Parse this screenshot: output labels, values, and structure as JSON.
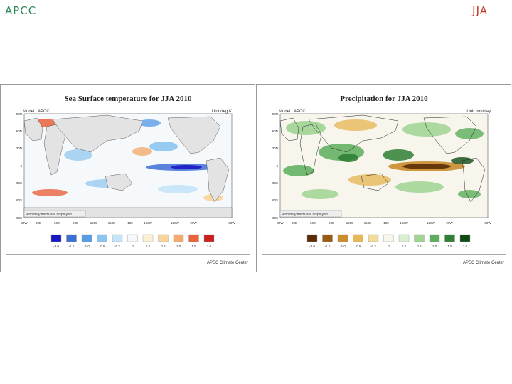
{
  "header": {
    "left": "APCC",
    "right": "JJA"
  },
  "panels": [
    {
      "title": "Sea Surface temperature for JJA 2010",
      "model": "Model : APCC",
      "unit": "Unit:deg K",
      "anomaly_note": "Anomaly fields are displayed",
      "lat_labels": [
        "90N",
        "60N",
        "30N",
        "0",
        "30S",
        "60S",
        "90S"
      ],
      "lon_labels": [
        "30W",
        "30E",
        "60E",
        "90E",
        "120E",
        "150E",
        "180",
        "150W",
        "120W",
        "90W",
        "30W"
      ],
      "legend_labels": [
        "-3.0",
        "-1.5",
        "-1.0",
        "-0.5",
        "-0.2",
        "0",
        "0.2",
        "0.5",
        "1.0",
        "1.5",
        "3.0"
      ],
      "legend_colors": [
        "#1a18c4",
        "#3d6fd6",
        "#5a9de6",
        "#8cc4f0",
        "#c4e4f7",
        "#f4f8fb",
        "#fbf0d2",
        "#f8d59a",
        "#f3ab6e",
        "#e9623c",
        "#c9201f"
      ],
      "footer": "APEC Climate Center"
    },
    {
      "title": "Precipitation for JJA 2010",
      "model": "Model : APCC",
      "unit": "Unit:mm/day",
      "anomaly_note": "Anomaly fields are displayed",
      "lat_labels": [
        "90N",
        "60N",
        "30N",
        "0",
        "30S",
        "60S",
        "90S"
      ],
      "lon_labels": [
        "30W",
        "30E",
        "60E",
        "90E",
        "120E",
        "150E",
        "180",
        "150W",
        "120W",
        "90W",
        "30W"
      ],
      "legend_labels": [
        "-3.0",
        "-1.5",
        "-1.0",
        "-0.5",
        "-0.2",
        "0",
        "0.2",
        "0.5",
        "1.0",
        "1.5",
        "3.0"
      ],
      "legend_colors": [
        "#5b2c06",
        "#9a5a12",
        "#c98d2c",
        "#e6b85a",
        "#f2dc9a",
        "#f7f5ec",
        "#d9efd2",
        "#9fd493",
        "#5cae5c",
        "#2f7f35",
        "#0f4a17"
      ],
      "footer": "APEC Climate Center"
    }
  ]
}
